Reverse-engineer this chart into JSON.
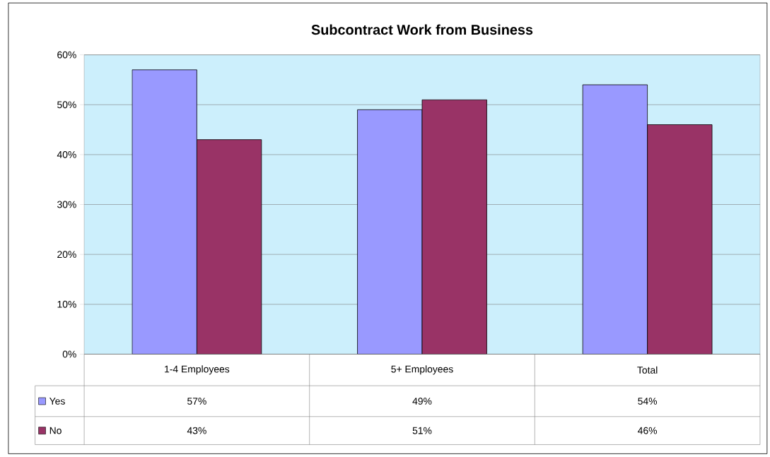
{
  "chart_data": {
    "type": "bar",
    "title": "Subcontract Work from Business",
    "categories": [
      "1-4 Employees",
      "5+ Employees",
      "Total"
    ],
    "series": [
      {
        "name": "Yes",
        "color": "#9999ff",
        "values": [
          57,
          49,
          54
        ],
        "value_labels": [
          "57%",
          "49%",
          "54%"
        ]
      },
      {
        "name": "No",
        "color": "#993366",
        "values": [
          43,
          51,
          46
        ],
        "value_labels": [
          "43%",
          "51%",
          "46%"
        ]
      }
    ],
    "ylim": [
      0,
      60
    ],
    "yticks": [
      {
        "value": 0,
        "label": "0%"
      },
      {
        "value": 10,
        "label": "10%"
      },
      {
        "value": 20,
        "label": "20%"
      },
      {
        "value": 30,
        "label": "30%"
      },
      {
        "value": 40,
        "label": "40%"
      },
      {
        "value": 50,
        "label": "50%"
      },
      {
        "value": 60,
        "label": "60%"
      }
    ],
    "grid": "y",
    "legend": "bottom left",
    "tick_labels": "y"
  }
}
